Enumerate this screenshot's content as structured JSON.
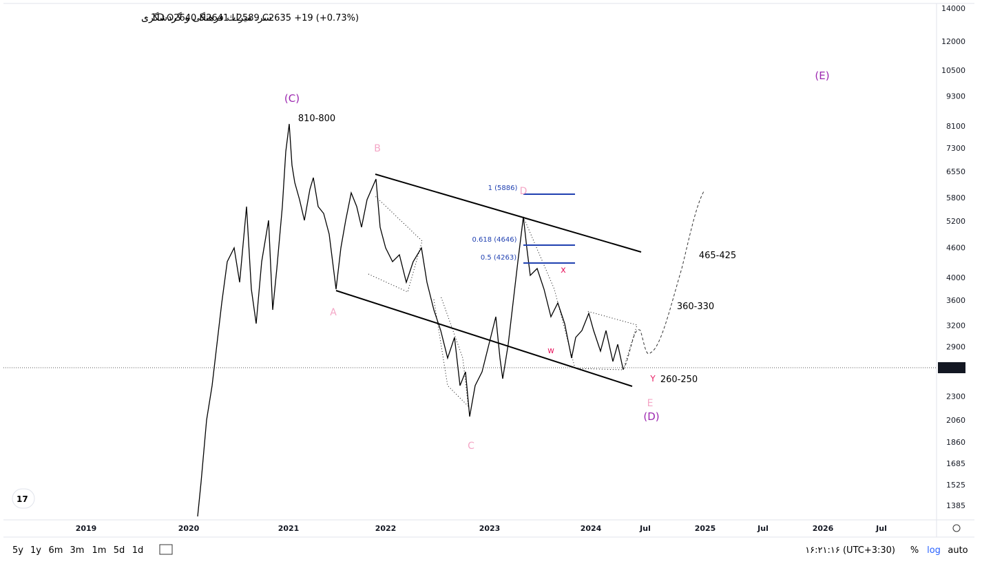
{
  "header": {
    "symbol": "سر. میراث فرهنگی و گردشگری",
    "interval": "· 1D",
    "ohlc": "O2640 H2641 L2589 C2635 +19 (+0.73%)"
  },
  "price_axis": [
    "14000",
    "12000",
    "10500",
    "9300",
    "8100",
    "7300",
    "6550",
    "5800",
    "5200",
    "4600",
    "4000",
    "3600",
    "3200",
    "2900",
    "2300",
    "2060",
    "1860",
    "1685",
    "1525",
    "1385"
  ],
  "last_price": "2635",
  "time_axis": [
    "2019",
    "2020",
    "2021",
    "2022",
    "2023",
    "2024",
    "Jul",
    "2025",
    "Jul",
    "2026",
    "Jul"
  ],
  "annotations": [
    "(C)",
    "810-800",
    "B",
    "A",
    "C",
    "D",
    "1 (5886)",
    "0.618 (4646)",
    "0.5 (4263)",
    "x",
    "w",
    "Y",
    "260-250",
    "E",
    "(D)",
    "360-330",
    "465-425",
    "(E)"
  ],
  "toolbar": {
    "ranges": [
      "5y",
      "1y",
      "6m",
      "3m",
      "1m",
      "5d",
      "1d"
    ],
    "clock": "۱۶:۲۱:۱۶ (UTC+3:30)",
    "percent": "%",
    "log": "log",
    "auto": "auto"
  }
}
